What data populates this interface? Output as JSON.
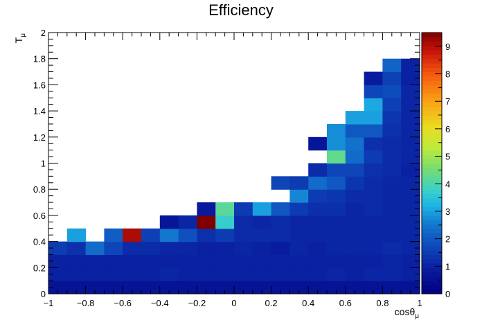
{
  "chart_data": {
    "type": "heatmap",
    "title": "Efficiency",
    "xlabel": {
      "base": "cosθ",
      "sub": "μ"
    },
    "ylabel": {
      "base": "T",
      "sub": "μ"
    },
    "xlim": [
      -1,
      1
    ],
    "ylim": [
      0,
      2
    ],
    "zlim": [
      0,
      9.5
    ],
    "x_ticks": [
      "−1",
      "−0.8",
      "−0.6",
      "−0.4",
      "−0.2",
      "0",
      "0.2",
      "0.4",
      "0.6",
      "0.8",
      "1"
    ],
    "x_tick_values": [
      -1,
      -0.8,
      -0.6,
      -0.4,
      -0.2,
      0,
      0.2,
      0.4,
      0.6,
      0.8,
      1
    ],
    "y_ticks": [
      "0",
      "0.2",
      "0.4",
      "0.6",
      "0.8",
      "1",
      "1.2",
      "1.4",
      "1.6",
      "1.8",
      "2"
    ],
    "y_tick_values": [
      0,
      0.2,
      0.4,
      0.6,
      0.8,
      1,
      1.2,
      1.4,
      1.6,
      1.8,
      2
    ],
    "z_ticks": [
      "0",
      "1",
      "2",
      "3",
      "4",
      "5",
      "6",
      "7",
      "8",
      "9"
    ],
    "z_tick_values": [
      0,
      1,
      2,
      3,
      4,
      5,
      6,
      7,
      8,
      9
    ],
    "nx": 20,
    "ny": 20,
    "x_edges_note": "bins of width 0.1 from -1 to 1",
    "y_edges_note": "bins of width 0.1 from 0 to 2",
    "values": [
      [
        0.6,
        0.6,
        0.6,
        0.6,
        0.6,
        0.6,
        0.6,
        0.6,
        0.6,
        0.6,
        0.6,
        0.6,
        0.6,
        0.6,
        0.6,
        0.6,
        0.6,
        0.6,
        0.6,
        0.6
      ],
      [
        1.0,
        1.0,
        1.0,
        1.0,
        1.0,
        1.0,
        1.1,
        1.0,
        1.0,
        1.0,
        1.0,
        1.0,
        1.0,
        1.0,
        1.0,
        1.1,
        1.0,
        1.1,
        1.1,
        1.0
      ],
      [
        1.0,
        1.0,
        1.0,
        1.0,
        1.0,
        1.0,
        1.0,
        1.0,
        1.0,
        1.0,
        1.0,
        1.0,
        1.0,
        1.0,
        1.0,
        1.0,
        1.0,
        1.0,
        1.1,
        1.0
      ],
      [
        1.5,
        1.3,
        2.3,
        1.7,
        1.2,
        1.2,
        1.1,
        1.1,
        1.0,
        1.0,
        1.1,
        1.0,
        0.9,
        1.1,
        1.0,
        1.1,
        1.1,
        1.1,
        1.2,
        1.1
      ],
      [
        null,
        3.0,
        null,
        2.1,
        9.1,
        1.6,
        2.5,
        1.9,
        1.3,
        1.5,
        1.2,
        1.2,
        1.2,
        1.1,
        1.1,
        1.1,
        1.1,
        1.1,
        1.1,
        1.1
      ],
      [
        null,
        null,
        null,
        null,
        null,
        null,
        0.7,
        1.1,
        9.5,
        3.7,
        1.2,
        1.1,
        1.2,
        1.1,
        1.1,
        1.1,
        1.1,
        1.1,
        1.1,
        1.1
      ],
      [
        null,
        null,
        null,
        null,
        null,
        null,
        null,
        null,
        0.8,
        4.2,
        1.5,
        3.0,
        2.0,
        1.5,
        1.3,
        1.3,
        1.1,
        1.2,
        1.1,
        1.1
      ],
      [
        null,
        null,
        null,
        null,
        null,
        null,
        null,
        null,
        null,
        null,
        null,
        null,
        null,
        2.7,
        1.5,
        1.4,
        1.2,
        1.2,
        1.1,
        1.1
      ],
      [
        null,
        null,
        null,
        null,
        null,
        null,
        null,
        null,
        null,
        null,
        null,
        null,
        1.7,
        1.5,
        2.3,
        2.0,
        1.4,
        1.2,
        1.1,
        1.1
      ],
      [
        null,
        null,
        null,
        null,
        null,
        null,
        null,
        null,
        null,
        null,
        null,
        null,
        null,
        null,
        1.2,
        1.7,
        1.7,
        1.3,
        1.2,
        1.0
      ],
      [
        null,
        null,
        null,
        null,
        null,
        null,
        null,
        null,
        null,
        null,
        null,
        null,
        null,
        null,
        null,
        4.3,
        2.3,
        1.5,
        1.2,
        1.1
      ],
      [
        null,
        null,
        null,
        null,
        null,
        null,
        null,
        null,
        null,
        null,
        null,
        null,
        null,
        null,
        0.7,
        2.8,
        2.4,
        1.3,
        1.2,
        1.1
      ],
      [
        null,
        null,
        null,
        null,
        null,
        null,
        null,
        null,
        null,
        null,
        null,
        null,
        null,
        null,
        null,
        2.8,
        2.0,
        2.0,
        1.3,
        1.1
      ],
      [
        null,
        null,
        null,
        null,
        null,
        null,
        null,
        null,
        null,
        null,
        null,
        null,
        null,
        null,
        null,
        null,
        3.0,
        3.0,
        1.4,
        1.1
      ],
      [
        null,
        null,
        null,
        null,
        null,
        null,
        null,
        null,
        null,
        null,
        null,
        null,
        null,
        null,
        null,
        null,
        null,
        3.1,
        1.6,
        1.1
      ],
      [
        null,
        null,
        null,
        null,
        null,
        null,
        null,
        null,
        null,
        null,
        null,
        null,
        null,
        null,
        null,
        null,
        null,
        1.7,
        1.8,
        1.1
      ],
      [
        null,
        null,
        null,
        null,
        null,
        null,
        null,
        null,
        null,
        null,
        null,
        null,
        null,
        null,
        null,
        null,
        null,
        0.9,
        1.6,
        1.0
      ],
      [
        null,
        null,
        null,
        null,
        null,
        null,
        null,
        null,
        null,
        null,
        null,
        null,
        null,
        null,
        null,
        null,
        null,
        null,
        2.2,
        1.0
      ],
      [
        null,
        null,
        null,
        null,
        null,
        null,
        null,
        null,
        null,
        null,
        null,
        null,
        null,
        null,
        null,
        null,
        null,
        null,
        null,
        null
      ],
      [
        null,
        null,
        null,
        null,
        null,
        null,
        null,
        null,
        null,
        null,
        null,
        null,
        null,
        null,
        null,
        null,
        null,
        null,
        null,
        null
      ]
    ],
    "colormap": "rainbow (dark blue → blue → cyan → green → yellow → orange → red → dark red)",
    "grid": false,
    "legend": "none (color bar on right)"
  }
}
